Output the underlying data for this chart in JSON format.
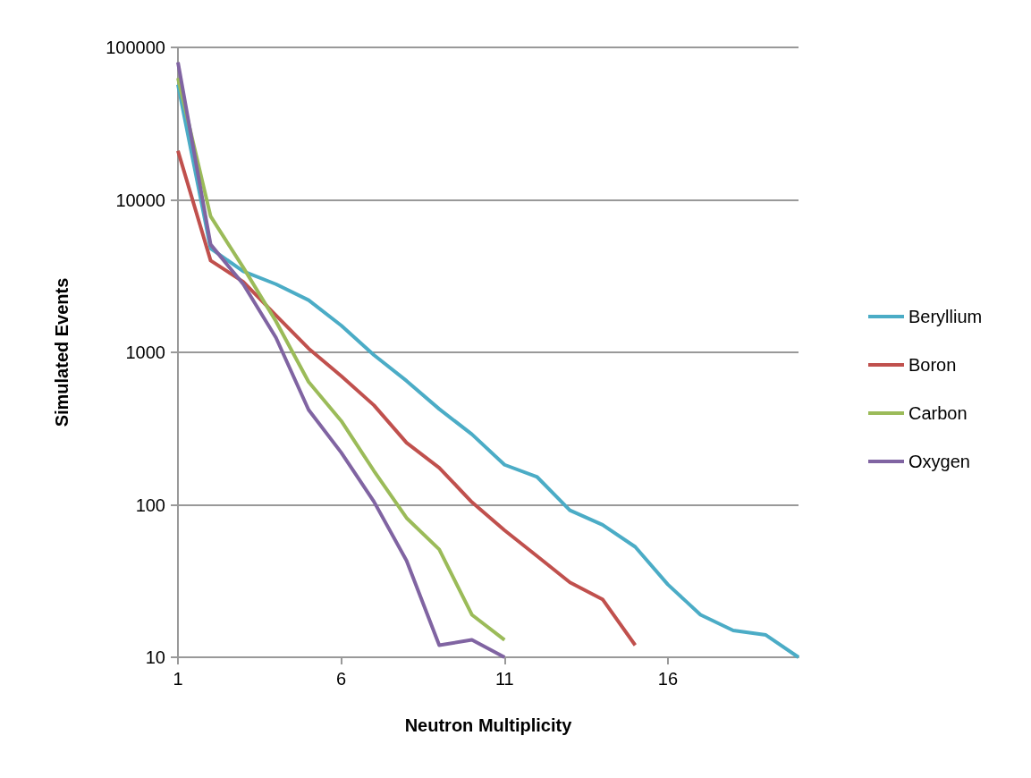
{
  "chart_data": {
    "type": "line",
    "xlabel": "Neutron Multiplicity",
    "ylabel": "Simulated Events",
    "x": [
      1,
      2,
      3,
      4,
      5,
      6,
      7,
      8,
      9,
      10,
      11,
      12,
      13,
      14,
      15,
      16,
      17,
      18,
      19,
      20
    ],
    "xlim": [
      1,
      20
    ],
    "xticks": [
      1,
      6,
      11,
      16
    ],
    "ylim": [
      10,
      100000
    ],
    "yticks": [
      10,
      100,
      1000,
      10000,
      100000
    ],
    "log": "y",
    "grid": "y",
    "legend": "right",
    "marker": "none",
    "line_style": "solid",
    "series": [
      {
        "name": "Beryllium",
        "color": "#4bacc6",
        "values": [
          57000,
          4800,
          3400,
          2800,
          2200,
          1500,
          960,
          650,
          425,
          290,
          183,
          152,
          92,
          74,
          53,
          30,
          19,
          15,
          14,
          10
        ]
      },
      {
        "name": "Boron",
        "color": "#c0504d",
        "values": [
          21000,
          4000,
          2900,
          1750,
          1060,
          700,
          450,
          255,
          175,
          104,
          68,
          46,
          31,
          24,
          12,
          null,
          null,
          null,
          null,
          null
        ]
      },
      {
        "name": "Carbon",
        "color": "#9bbb59",
        "values": [
          63000,
          7800,
          3600,
          1600,
          640,
          355,
          167,
          82,
          51,
          19,
          13,
          null,
          null,
          null,
          null,
          null,
          null,
          null,
          null,
          null
        ]
      },
      {
        "name": "Oxygen",
        "color": "#8064a2",
        "values": [
          80000,
          5100,
          2800,
          1250,
          420,
          220,
          105,
          43,
          12,
          13,
          10,
          null,
          null,
          null,
          null,
          null,
          null,
          null,
          null,
          null
        ]
      }
    ]
  }
}
